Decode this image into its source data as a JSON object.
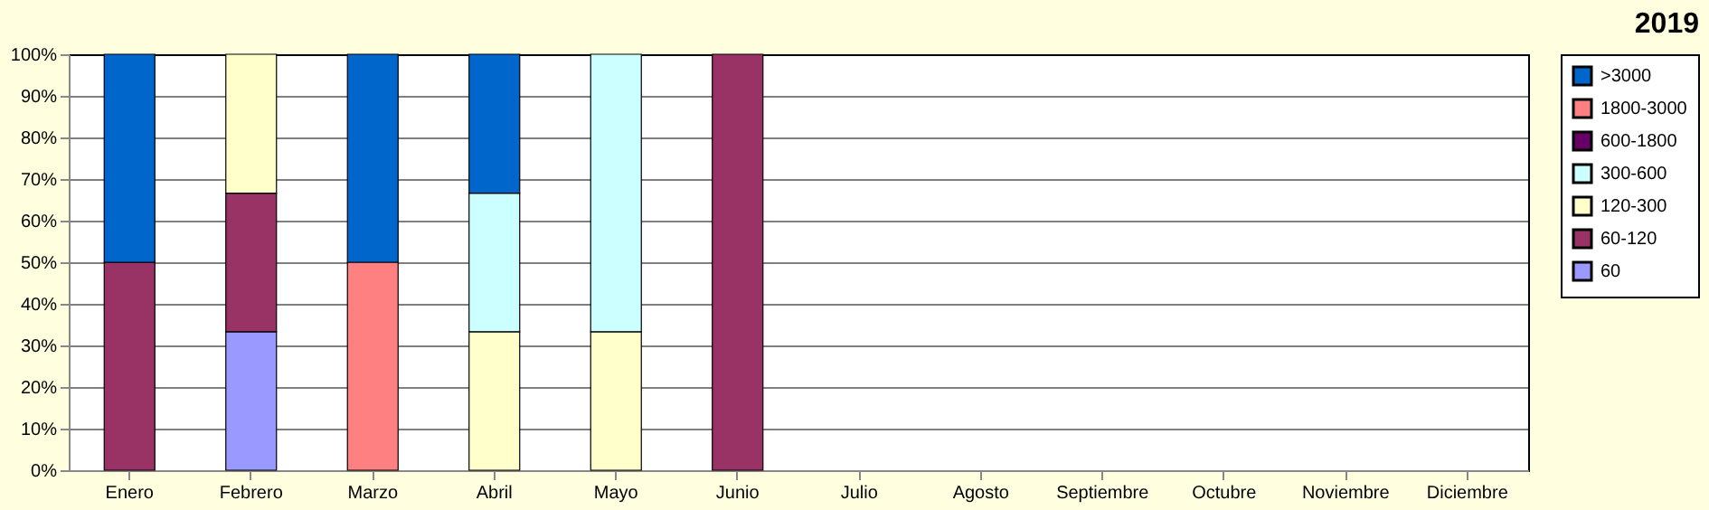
{
  "chart_data": {
    "type": "bar",
    "title": "2019",
    "stacked": true,
    "categories": [
      "Enero",
      "Febrero",
      "Marzo",
      "Abril",
      "Mayo",
      "Junio",
      "Julio",
      "Agosto",
      "Septiembre",
      "Octubre",
      "Noviembre",
      "Diciembre"
    ],
    "series": [
      {
        "name": "60",
        "color": "#9999ff",
        "values": [
          null,
          33.3,
          null,
          null,
          null,
          null,
          null,
          null,
          null,
          null,
          null,
          null
        ]
      },
      {
        "name": "60-120",
        "color": "#993366",
        "values": [
          50,
          33.3,
          null,
          null,
          null,
          100,
          null,
          null,
          null,
          null,
          null,
          null
        ]
      },
      {
        "name": "120-300",
        "color": "#ffffcc",
        "values": [
          null,
          33.4,
          null,
          33.3,
          33.3,
          null,
          null,
          null,
          null,
          null,
          null,
          null
        ]
      },
      {
        "name": "300-600",
        "color": "#ccffff",
        "values": [
          null,
          null,
          null,
          33.3,
          66.7,
          null,
          null,
          null,
          null,
          null,
          null,
          null
        ]
      },
      {
        "name": "600-1800",
        "color": "#660066",
        "values": [
          null,
          null,
          null,
          null,
          null,
          null,
          null,
          null,
          null,
          null,
          null,
          null
        ]
      },
      {
        "name": "1800-3000",
        "color": "#ff8080",
        "values": [
          null,
          null,
          50,
          null,
          null,
          null,
          null,
          null,
          null,
          null,
          null,
          null
        ]
      },
      {
        "name": ">3000",
        "color": "#0066cc",
        "values": [
          50,
          null,
          50,
          33.4,
          null,
          null,
          null,
          null,
          null,
          null,
          null,
          null
        ]
      }
    ],
    "ylim": [
      0,
      100
    ],
    "yticks": [
      {
        "value": 0,
        "label": "0%"
      },
      {
        "value": 10,
        "label": "10%"
      },
      {
        "value": 20,
        "label": "20%"
      },
      {
        "value": 30,
        "label": "30%"
      },
      {
        "value": 40,
        "label": "40%"
      },
      {
        "value": 50,
        "label": "50%"
      },
      {
        "value": 60,
        "label": "60%"
      },
      {
        "value": 70,
        "label": "70%"
      },
      {
        "value": 80,
        "label": "80%"
      },
      {
        "value": 90,
        "label": "90%"
      },
      {
        "value": 100,
        "label": "100%"
      }
    ],
    "grid": "y",
    "legend": "right"
  }
}
